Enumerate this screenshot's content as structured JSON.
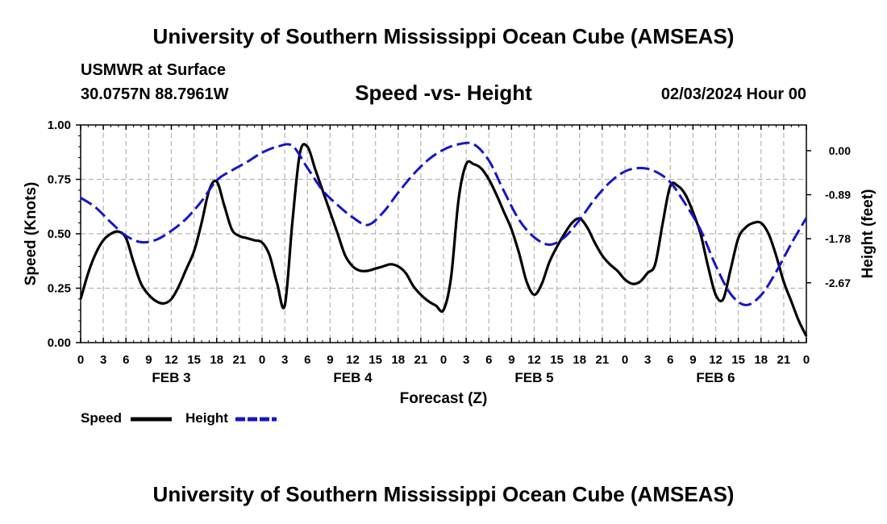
{
  "header": {
    "main_title": "University of Southern Mississippi Ocean Cube (AMSEAS)",
    "station": "USMWR at Surface",
    "location": "30.0757N  88.7961W",
    "chart_title": "Speed -vs- Height",
    "date": "02/03/2024 Hour 00"
  },
  "footer": {
    "main_title": "University of Southern Mississippi Ocean Cube (AMSEAS)"
  },
  "colors": {
    "speed": "#000000",
    "height": "#1515c8",
    "grid": "#b4b4b4"
  },
  "chart_data": {
    "type": "line",
    "title": "Speed -vs- Height",
    "xlabel": "Forecast (Z)",
    "ylabel": "Speed (Knots)",
    "y2label": "Height (feet)",
    "xlim": [
      0,
      96
    ],
    "ylim": [
      0,
      1
    ],
    "y2lim": [
      -3.88,
      0.52
    ],
    "x_ticks": [
      0,
      3,
      6,
      9,
      12,
      15,
      18,
      21,
      24,
      27,
      30,
      33,
      36,
      39,
      42,
      45,
      48,
      51,
      54,
      57,
      60,
      63,
      66,
      69,
      72,
      75,
      78,
      81,
      84,
      87,
      90,
      93,
      96
    ],
    "x_tick_labels": [
      "0",
      "3",
      "6",
      "9",
      "12",
      "15",
      "18",
      "21",
      "0",
      "3",
      "6",
      "9",
      "12",
      "15",
      "18",
      "21",
      "0",
      "3",
      "6",
      "9",
      "12",
      "15",
      "18",
      "21",
      "0",
      "3",
      "6",
      "9",
      "12",
      "15",
      "18",
      "21",
      "0"
    ],
    "day_labels": [
      {
        "x": 12,
        "label": "FEB 3"
      },
      {
        "x": 36,
        "label": "FEB 4"
      },
      {
        "x": 60,
        "label": "FEB 5"
      },
      {
        "x": 84,
        "label": "FEB 6"
      }
    ],
    "y_ticks": [
      0,
      0.25,
      0.5,
      0.75,
      1.0
    ],
    "y_tick_labels": [
      "0.00",
      "0.25",
      "0.50",
      "0.75",
      "1.00"
    ],
    "y2_ticks": [
      0.0,
      -0.89,
      -1.78,
      -2.67
    ],
    "y2_tick_labels": [
      "0.00",
      "-0.89",
      "-1.78",
      "-2.67"
    ],
    "series": [
      {
        "name": "Speed",
        "axis": "left",
        "style": "solid",
        "x": [
          0,
          1,
          2,
          3,
          4,
          5,
          6,
          7,
          8,
          9,
          10,
          11,
          12,
          13,
          14,
          15,
          16,
          17,
          18,
          19,
          20,
          21,
          22,
          23,
          24,
          25,
          26,
          27,
          28,
          29,
          30,
          31,
          32,
          33,
          34,
          35,
          36,
          37,
          38,
          39,
          40,
          41,
          42,
          43,
          44,
          45,
          46,
          47,
          48,
          49,
          50,
          51,
          52,
          53,
          54,
          55,
          56,
          57,
          58,
          59,
          60,
          61,
          62,
          63,
          64,
          65,
          66,
          67,
          68,
          69,
          70,
          71,
          72,
          73,
          74,
          75,
          76,
          77,
          78,
          79,
          80,
          81,
          82,
          83,
          84,
          85,
          86,
          87,
          88,
          89,
          90,
          91,
          92,
          93,
          94,
          95,
          96
        ],
        "values": [
          0.2,
          0.32,
          0.41,
          0.47,
          0.5,
          0.51,
          0.48,
          0.37,
          0.27,
          0.22,
          0.19,
          0.18,
          0.2,
          0.26,
          0.34,
          0.42,
          0.55,
          0.7,
          0.74,
          0.63,
          0.52,
          0.49,
          0.48,
          0.47,
          0.46,
          0.4,
          0.27,
          0.17,
          0.55,
          0.87,
          0.9,
          0.8,
          0.7,
          0.6,
          0.5,
          0.4,
          0.35,
          0.33,
          0.33,
          0.34,
          0.35,
          0.36,
          0.35,
          0.32,
          0.26,
          0.22,
          0.19,
          0.17,
          0.15,
          0.3,
          0.66,
          0.82,
          0.82,
          0.8,
          0.75,
          0.68,
          0.6,
          0.52,
          0.41,
          0.28,
          0.22,
          0.27,
          0.37,
          0.44,
          0.5,
          0.55,
          0.57,
          0.53,
          0.46,
          0.4,
          0.36,
          0.33,
          0.29,
          0.27,
          0.28,
          0.32,
          0.36,
          0.55,
          0.72,
          0.72,
          0.68,
          0.6,
          0.5,
          0.35,
          0.22,
          0.2,
          0.34,
          0.48,
          0.53,
          0.55,
          0.55,
          0.5,
          0.4,
          0.28,
          0.19,
          0.1,
          0.03
        ]
      },
      {
        "name": "Height",
        "axis": "right",
        "style": "dashed",
        "x": [
          0,
          2,
          4,
          6,
          8,
          10,
          12,
          14,
          16,
          18,
          20,
          22,
          24,
          26,
          28,
          30,
          32,
          34,
          36,
          38,
          40,
          42,
          44,
          46,
          48,
          50,
          52,
          54,
          56,
          58,
          60,
          62,
          64,
          66,
          68,
          70,
          72,
          74,
          76,
          78,
          80,
          82,
          84,
          86,
          88,
          90,
          92,
          94,
          96
        ],
        "values": [
          -0.95,
          -1.15,
          -1.45,
          -1.72,
          -1.85,
          -1.8,
          -1.62,
          -1.37,
          -1.02,
          -0.6,
          -0.4,
          -0.23,
          -0.04,
          0.08,
          0.1,
          -0.35,
          -0.8,
          -1.1,
          -1.35,
          -1.5,
          -1.25,
          -0.85,
          -0.48,
          -0.18,
          0.02,
          0.13,
          0.13,
          -0.2,
          -0.82,
          -1.4,
          -1.75,
          -1.9,
          -1.75,
          -1.4,
          -0.98,
          -0.64,
          -0.42,
          -0.35,
          -0.42,
          -0.64,
          -1.08,
          -1.6,
          -2.32,
          -2.9,
          -3.12,
          -2.92,
          -2.45,
          -1.88,
          -1.36
        ]
      }
    ],
    "legend": [
      {
        "label": "Speed",
        "style": "solid"
      },
      {
        "label": "Height",
        "style": "dashed"
      }
    ]
  }
}
